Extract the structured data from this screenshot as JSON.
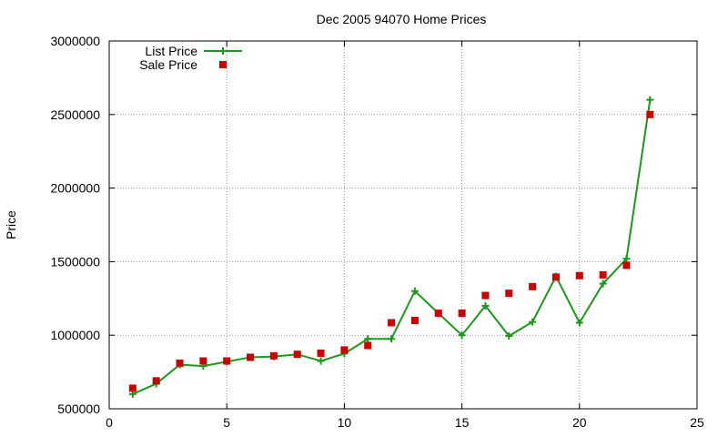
{
  "chart_data": {
    "type": "line",
    "title": "Dec 2005 94070 Home Prices",
    "xlabel": "",
    "ylabel": "Price",
    "xlim": [
      0,
      25
    ],
    "ylim": [
      500000,
      3000000
    ],
    "xticks": [
      0,
      5,
      10,
      15,
      20,
      25
    ],
    "yticks": [
      500000,
      1000000,
      1500000,
      2000000,
      2500000,
      3000000
    ],
    "x_tick_labels": [
      "0",
      "5",
      "10",
      "15",
      "20",
      "25"
    ],
    "y_tick_labels": [
      "500000",
      "1000000",
      "1500000",
      "2000000",
      "2500000",
      "3000000"
    ],
    "grid": true,
    "legend_position": "top-left",
    "series": [
      {
        "name": "List Price",
        "style": "line-with-plus-markers",
        "color": "#1a9a1a",
        "x": [
          1,
          2,
          3,
          4,
          5,
          6,
          7,
          8,
          9,
          10,
          11,
          12,
          13,
          14,
          15,
          16,
          17,
          18,
          19,
          20,
          21,
          22,
          23
        ],
        "values": [
          600000,
          670000,
          800000,
          790000,
          820000,
          850000,
          855000,
          870000,
          825000,
          875000,
          975000,
          975000,
          1300000,
          1150000,
          1000000,
          1200000,
          995000,
          1090000,
          1400000,
          1085000,
          1350000,
          1520000,
          2600000
        ]
      },
      {
        "name": "Sale Price",
        "style": "square-markers",
        "color": "#cc0000",
        "x": [
          1,
          2,
          3,
          4,
          5,
          6,
          7,
          8,
          9,
          10,
          11,
          12,
          13,
          14,
          15,
          16,
          17,
          18,
          19,
          20,
          21,
          22,
          23
        ],
        "values": [
          640000,
          690000,
          810000,
          825000,
          825000,
          850000,
          860000,
          870000,
          878000,
          900000,
          930000,
          1085000,
          1100000,
          1150000,
          1150000,
          1270000,
          1285000,
          1330000,
          1395000,
          1405000,
          1410000,
          1475000,
          2500000
        ]
      }
    ]
  }
}
